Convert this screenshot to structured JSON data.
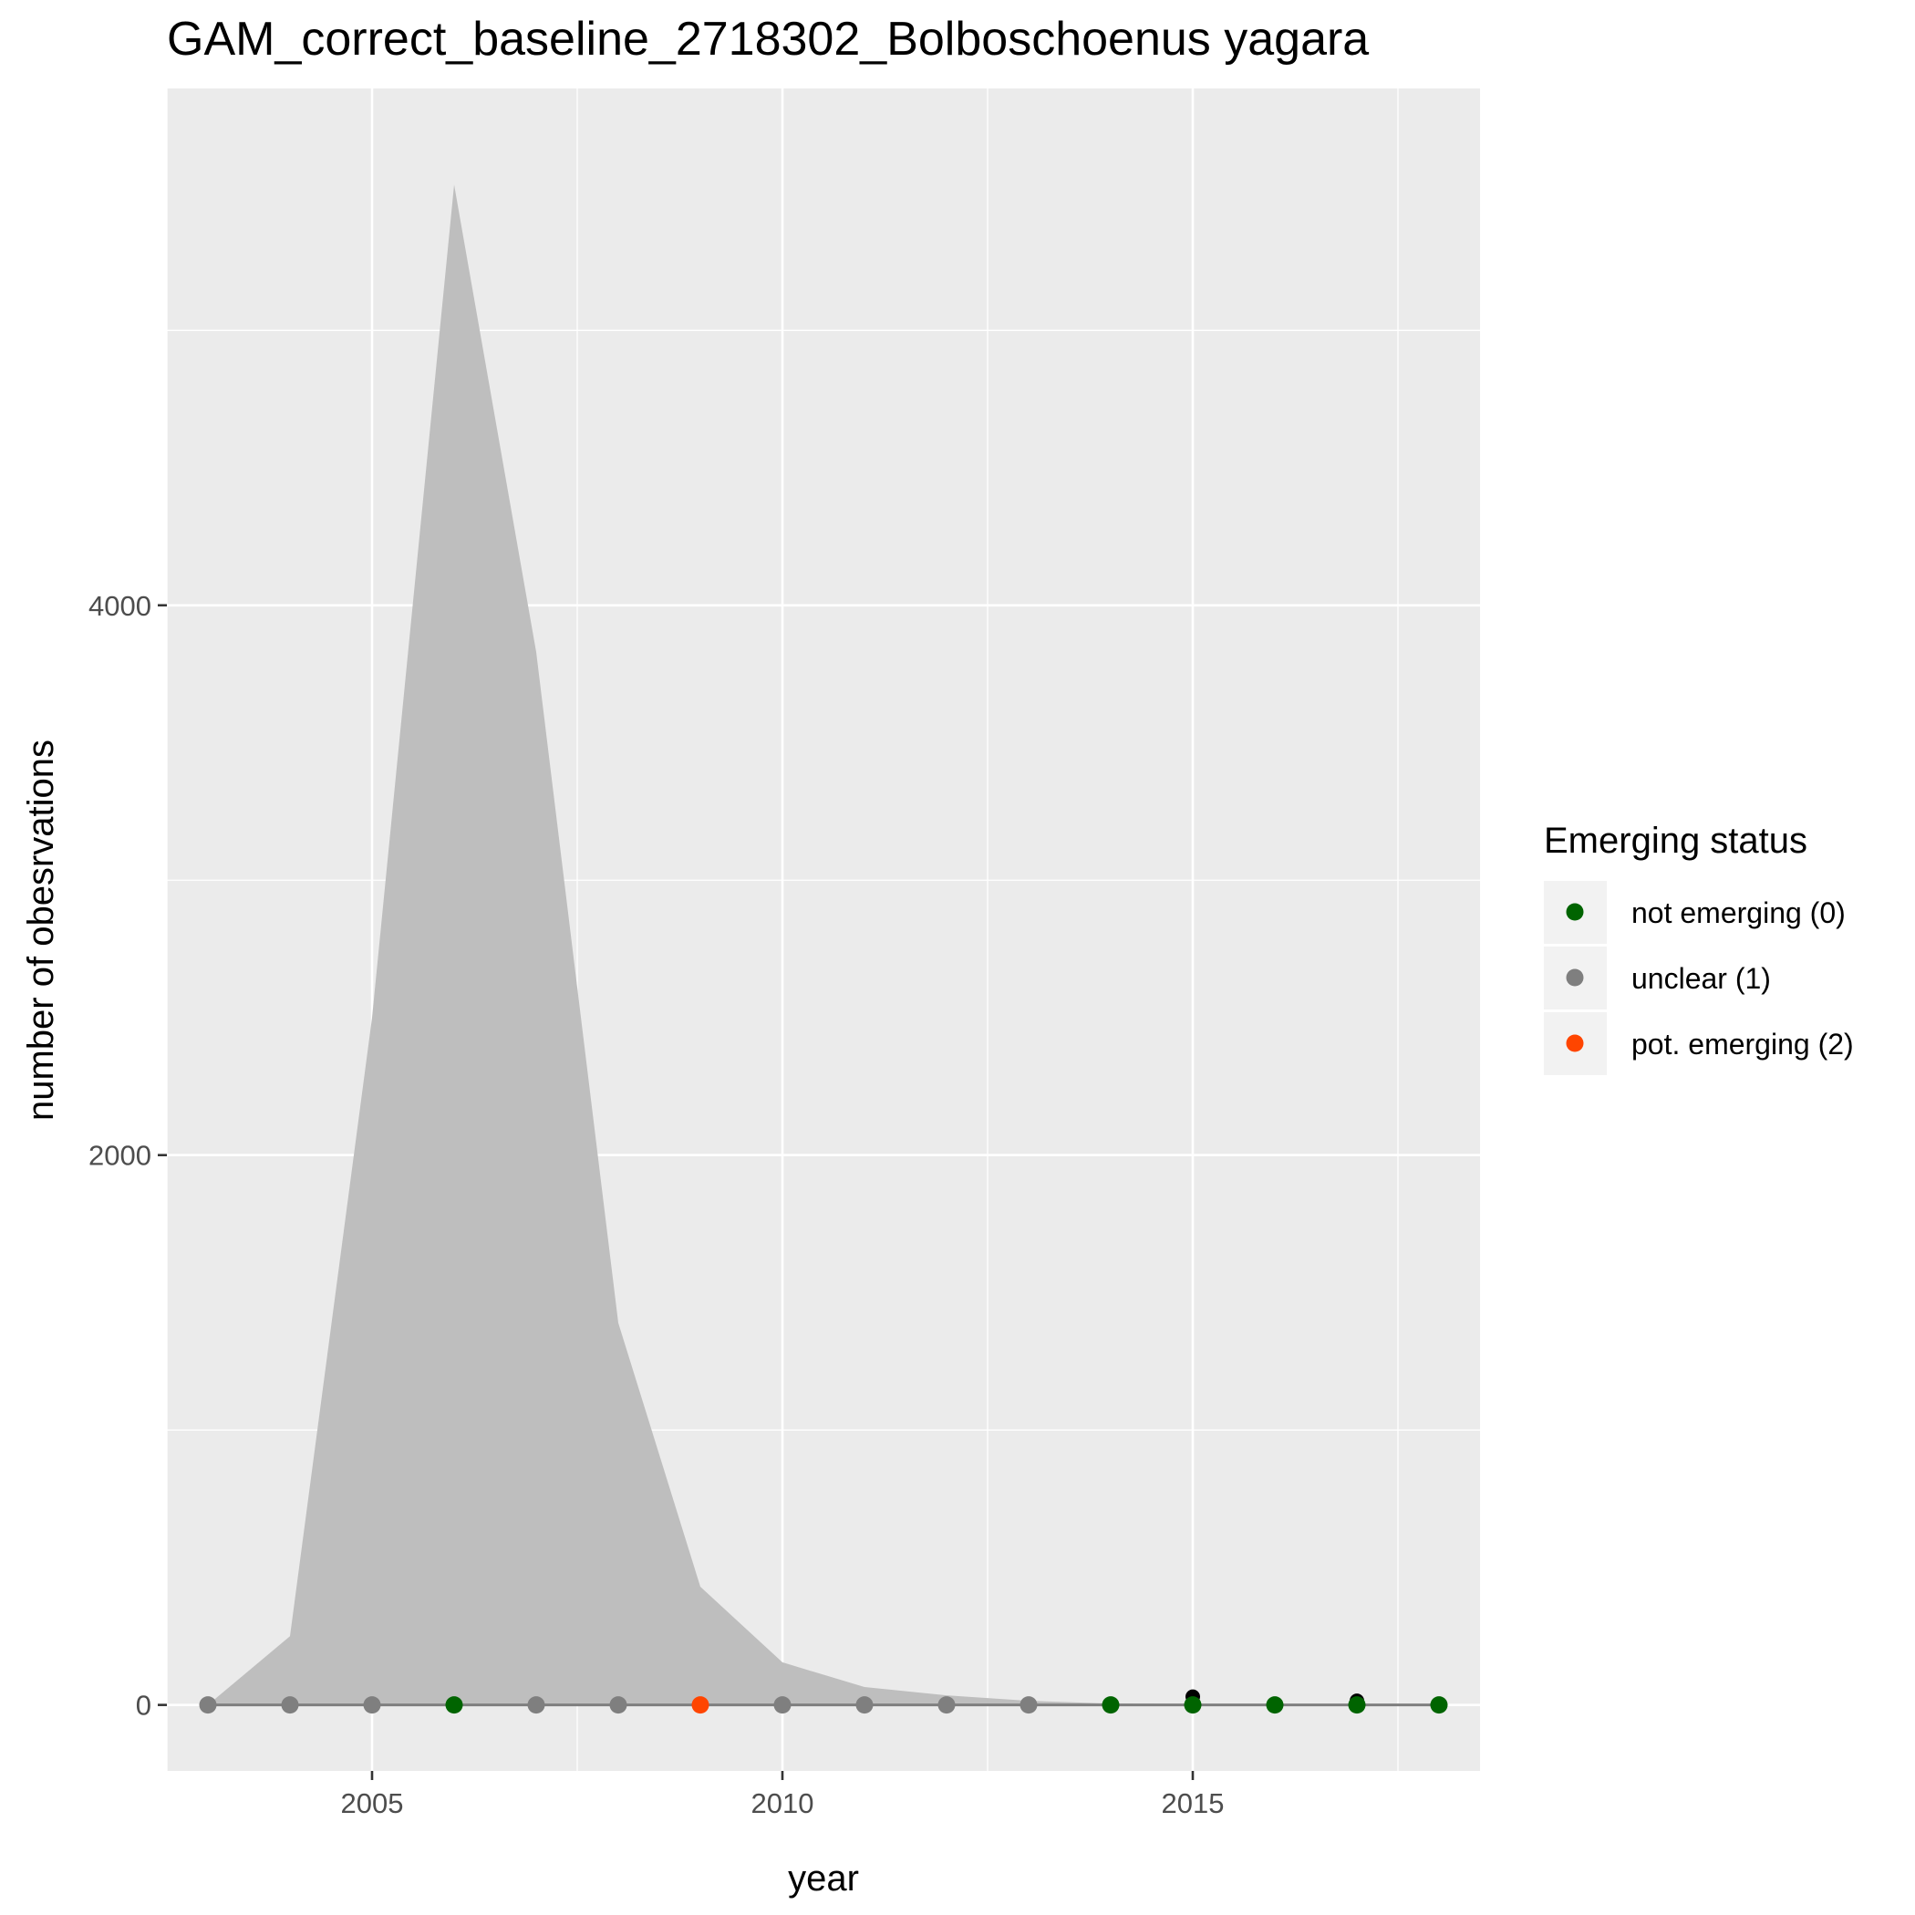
{
  "chart_data": {
    "type": "area",
    "title": "GAM_correct_baseline_2718302_Bolboschoenus yagara",
    "xlabel": "year",
    "ylabel": "number of obesrvations",
    "xlim": [
      2002.5,
      2018.5
    ],
    "ylim": [
      -240,
      5880
    ],
    "x_ticks": [
      2005,
      2010,
      2015
    ],
    "y_ticks": [
      0,
      2000,
      4000
    ],
    "grid": true,
    "colors": {
      "panel": "#ebebeb",
      "grid": "#ffffff",
      "area": "#bebebe",
      "line": "#7f7f7f",
      "not_emerging": "#006400",
      "unclear": "#7f7f7f",
      "pot_emerging": "#ff4500",
      "extra_points": "#000000"
    },
    "area_series": {
      "x": [
        2003,
        2004,
        2005,
        2006,
        2007,
        2008,
        2009,
        2010,
        2011,
        2012,
        2013,
        2014,
        2015,
        2016,
        2017,
        2018
      ],
      "y": [
        0,
        250,
        2500,
        5530,
        3830,
        1390,
        430,
        155,
        65,
        35,
        15,
        5,
        3,
        2,
        2,
        1
      ]
    },
    "fit_series": {
      "x": [
        2003,
        2004,
        2005,
        2006,
        2007,
        2008,
        2009,
        2010,
        2011,
        2012,
        2013,
        2014,
        2015,
        2016,
        2017,
        2018
      ],
      "y": [
        0,
        0,
        0,
        0,
        0,
        0,
        0,
        0,
        0,
        0,
        0,
        0,
        0,
        0,
        0,
        0
      ]
    },
    "points": [
      {
        "x": 2003,
        "y": 0,
        "status": "unclear"
      },
      {
        "x": 2004,
        "y": 0,
        "status": "unclear"
      },
      {
        "x": 2005,
        "y": 0,
        "status": "unclear"
      },
      {
        "x": 2006,
        "y": 0,
        "status": "not_emerging"
      },
      {
        "x": 2007,
        "y": 0,
        "status": "unclear"
      },
      {
        "x": 2008,
        "y": 0,
        "status": "unclear"
      },
      {
        "x": 2009,
        "y": 0,
        "status": "pot_emerging"
      },
      {
        "x": 2010,
        "y": 0,
        "status": "unclear"
      },
      {
        "x": 2011,
        "y": 0,
        "status": "unclear"
      },
      {
        "x": 2012,
        "y": 0,
        "status": "unclear"
      },
      {
        "x": 2013,
        "y": 0,
        "status": "unclear"
      },
      {
        "x": 2014,
        "y": 0,
        "status": "not_emerging"
      },
      {
        "x": 2015,
        "y": 0,
        "status": "not_emerging"
      },
      {
        "x": 2016,
        "y": 0,
        "status": "not_emerging"
      },
      {
        "x": 2017,
        "y": 0,
        "status": "not_emerging"
      },
      {
        "x": 2018,
        "y": 0,
        "status": "not_emerging"
      }
    ],
    "extra_points": [
      {
        "x": 2015,
        "y": 30
      },
      {
        "x": 2015,
        "y": 10
      },
      {
        "x": 2017,
        "y": 15
      }
    ],
    "legend": {
      "title": "Emerging status",
      "placement": "right",
      "entries": [
        {
          "key": "not_emerging",
          "label": "not emerging (0)"
        },
        {
          "key": "unclear",
          "label": "unclear (1)"
        },
        {
          "key": "pot_emerging",
          "label": "pot. emerging (2)"
        }
      ]
    }
  }
}
